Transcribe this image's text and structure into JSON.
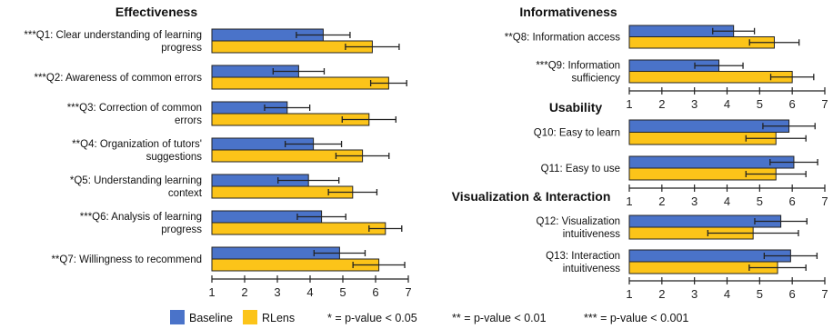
{
  "colors": {
    "baseline": "#4a73c9",
    "rlens": "#fcc419",
    "axis": "#222222"
  },
  "legend": {
    "baseline_label": "Baseline",
    "rlens_label": "RLens",
    "sig1": "* = p-value < 0.05",
    "sig2": "** = p-value < 0.01",
    "sig3": "*** = p-value < 0.001"
  },
  "chart_data": [
    {
      "type": "bar",
      "orientation": "horizontal",
      "title": "Effectiveness",
      "xlim": [
        1,
        7
      ],
      "ticks": [
        1,
        2,
        3,
        4,
        5,
        6,
        7
      ],
      "categories": [
        [
          "***Q1: Clear understanding of learning",
          "progress"
        ],
        [
          "***Q2: Awareness of common errors"
        ],
        [
          "***Q3: Correction of common",
          "errors"
        ],
        [
          "**Q4: Organization of tutors'",
          "suggestions"
        ],
        [
          "*Q5: Understanding learning",
          "context"
        ],
        [
          "***Q6: Analysis of learning",
          "progress"
        ],
        [
          "**Q7: Willingness to recommend"
        ]
      ],
      "series": [
        {
          "key": "baseline",
          "values": [
            4.4,
            3.65,
            3.3,
            4.1,
            3.95,
            4.35,
            4.9
          ],
          "err": [
            0.82,
            0.78,
            0.69,
            0.86,
            0.93,
            0.74,
            0.78
          ]
        },
        {
          "key": "rlens",
          "values": [
            5.9,
            6.4,
            5.8,
            5.6,
            5.3,
            6.3,
            6.1
          ],
          "err": [
            0.82,
            0.55,
            0.82,
            0.81,
            0.74,
            0.5,
            0.79
          ]
        }
      ]
    },
    {
      "type": "bar",
      "orientation": "horizontal",
      "title": "Informativeness",
      "xlim": [
        1,
        7
      ],
      "ticks": [
        1,
        2,
        3,
        4,
        5,
        6,
        7
      ],
      "categories": [
        [
          "**Q8: Information access"
        ],
        [
          "***Q9: Information",
          "sufficiency"
        ]
      ],
      "series": [
        {
          "key": "baseline",
          "values": [
            4.2,
            3.75
          ],
          "err": [
            0.64,
            0.74
          ]
        },
        {
          "key": "rlens",
          "values": [
            5.45,
            6.0
          ],
          "err": [
            0.76,
            0.66
          ]
        }
      ]
    },
    {
      "type": "bar",
      "orientation": "horizontal",
      "title": "Usability",
      "xlim": [
        1,
        7
      ],
      "ticks": [
        1,
        2,
        3,
        4,
        5,
        6,
        7
      ],
      "categories": [
        [
          "Q10: Easy to learn"
        ],
        [
          "Q11: Easy to use"
        ]
      ],
      "series": [
        {
          "key": "baseline",
          "values": [
            5.9,
            6.05
          ],
          "err": [
            0.8,
            0.73
          ]
        },
        {
          "key": "rlens",
          "values": [
            5.5,
            5.5
          ],
          "err": [
            0.92,
            0.92
          ]
        }
      ]
    },
    {
      "type": "bar",
      "orientation": "horizontal",
      "title": "Visualization & Interaction",
      "xlim": [
        1,
        7
      ],
      "ticks": [
        1,
        2,
        3,
        4,
        5,
        6,
        7
      ],
      "categories": [
        [
          "Q12: Visualization",
          "intuitiveness"
        ],
        [
          "Q13: Interaction",
          "intuitiveness"
        ]
      ],
      "series": [
        {
          "key": "baseline",
          "values": [
            5.65,
            5.95
          ],
          "err": [
            0.8,
            0.81
          ]
        },
        {
          "key": "rlens",
          "values": [
            4.8,
            5.55
          ],
          "err": [
            1.39,
            0.87
          ]
        }
      ]
    }
  ]
}
